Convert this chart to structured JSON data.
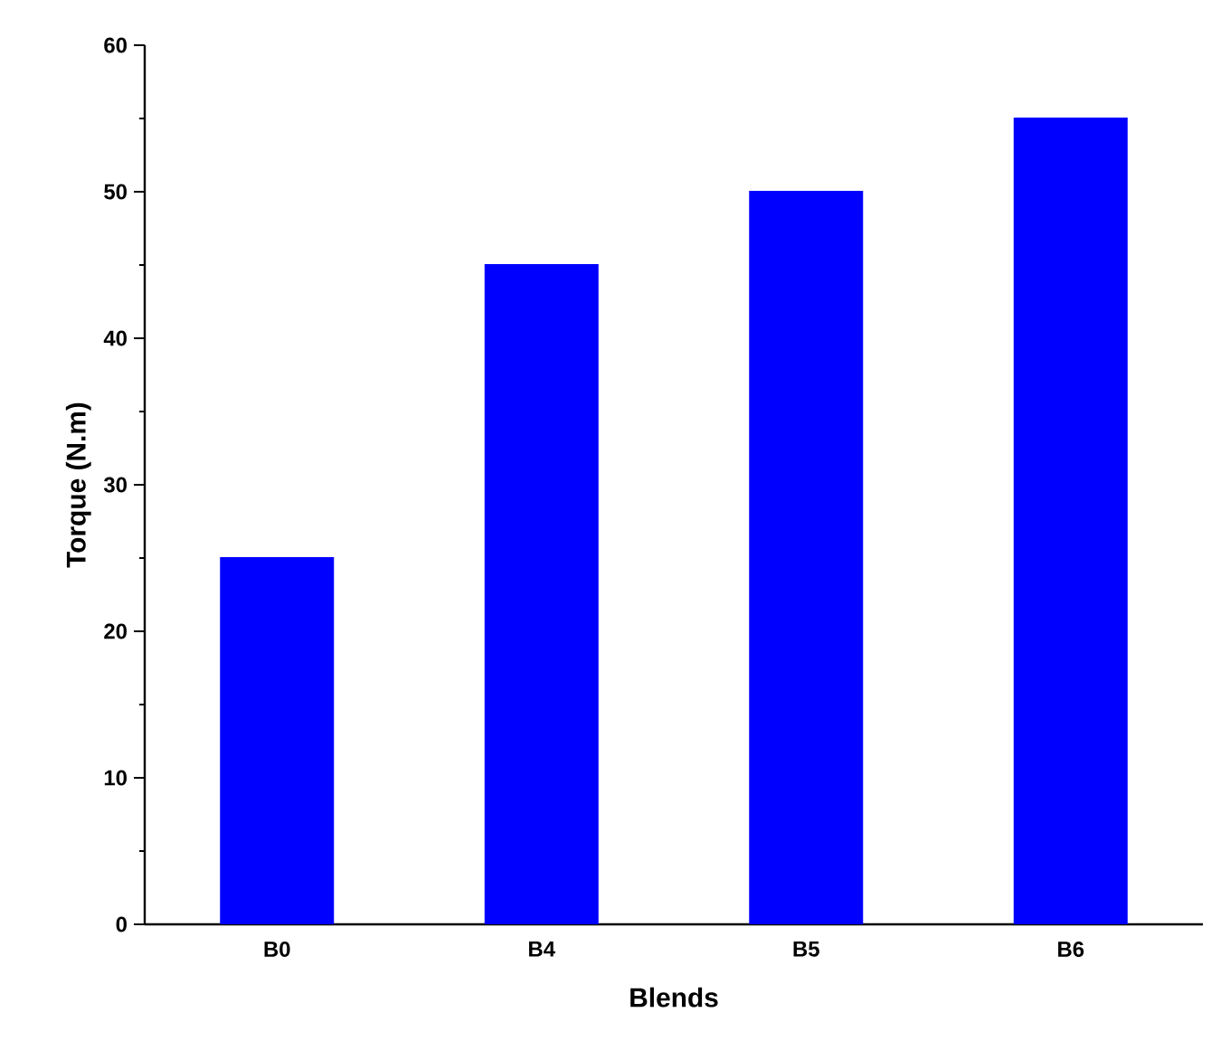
{
  "chart_data": {
    "type": "bar",
    "xlabel": "Blends",
    "ylabel": "Torque (N.m)",
    "categories": [
      "B0",
      "B4",
      "B5",
      "B6"
    ],
    "values": [
      25,
      45,
      50,
      55
    ],
    "color": "#0000ff",
    "ylim": [
      0,
      60
    ],
    "yticks": [
      0,
      10,
      20,
      30,
      40,
      50,
      60
    ],
    "grid": false
  }
}
